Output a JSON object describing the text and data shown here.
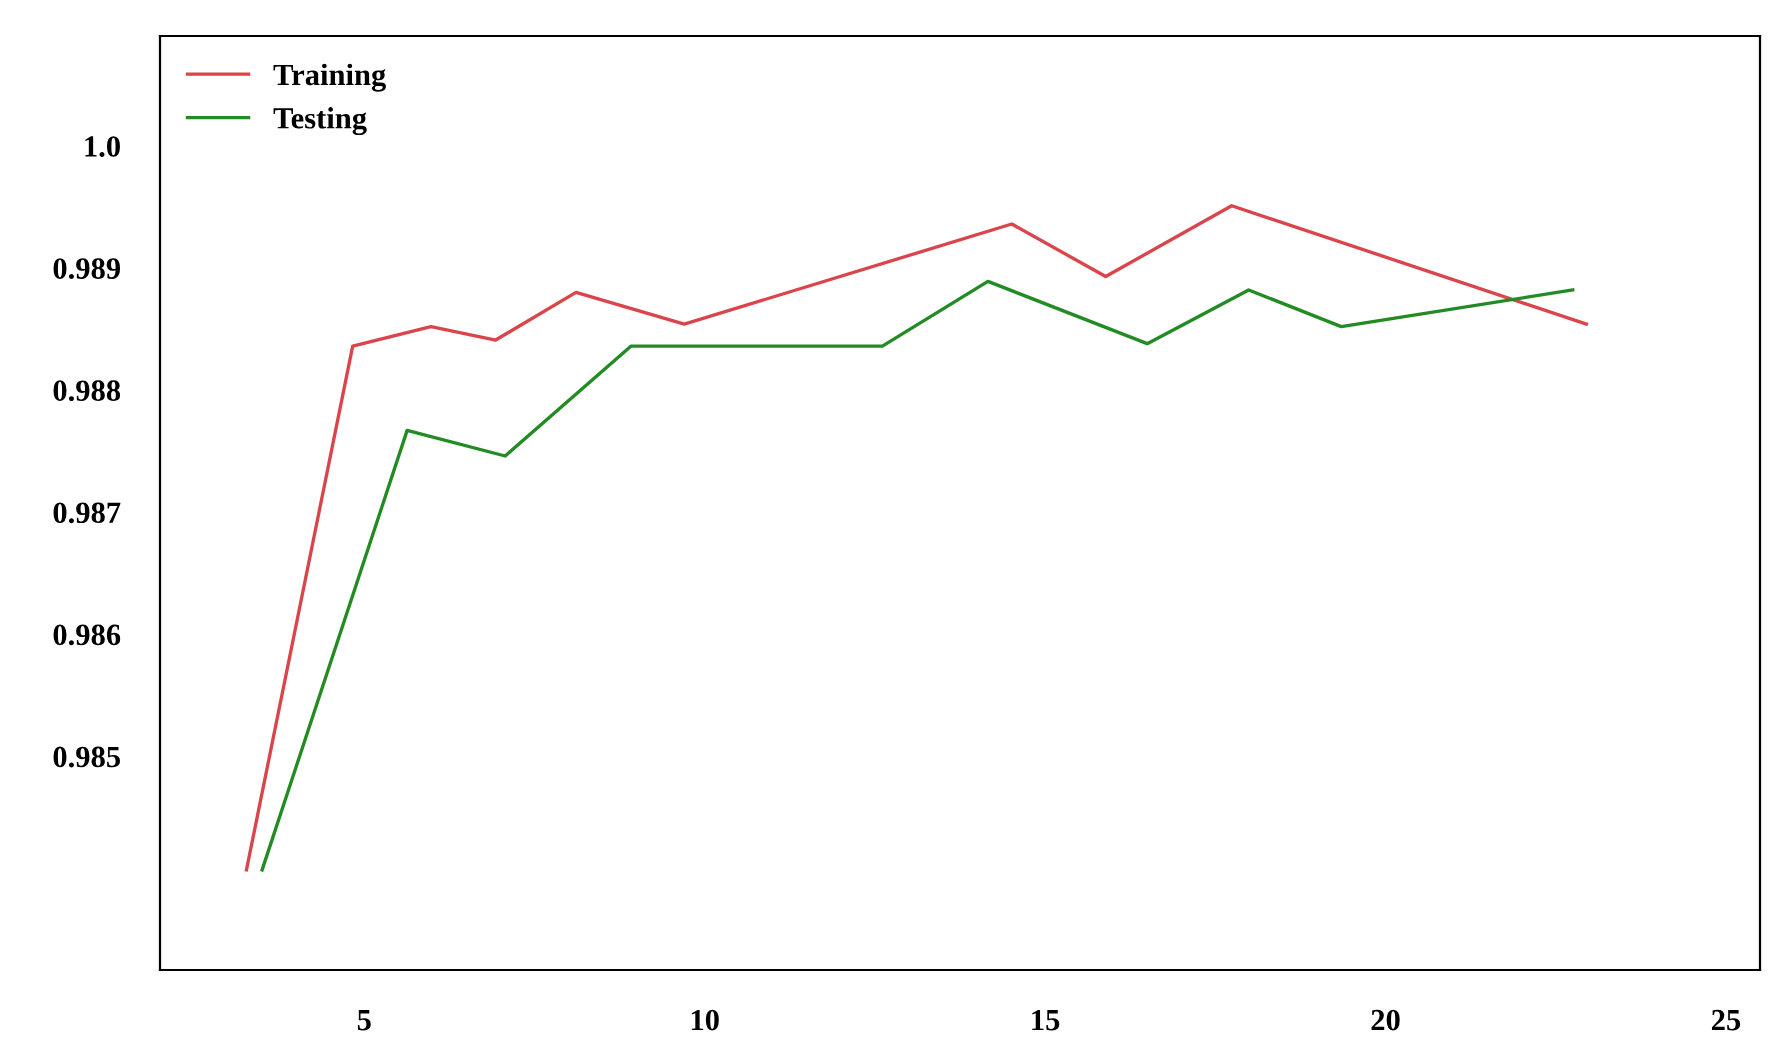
{
  "chart_data": {
    "type": "line",
    "xlim": [
      2.0,
      25.5
    ],
    "xticks": [
      5,
      10,
      15,
      20,
      25
    ],
    "ylim": [
      0.98325,
      0.9909
    ],
    "yticks": [
      0.985,
      0.986,
      0.987,
      0.988,
      0.989,
      {
        "value": 0.99,
        "label": "1.0"
      }
    ],
    "grid": false,
    "legend": "top left",
    "marker": "none",
    "line_style": "solid",
    "series": [
      {
        "name": "Training",
        "color": "#d9454a",
        "x": [
          3.27,
          4.83,
          5.98,
          6.93,
          8.11,
          9.7,
          14.51,
          15.89,
          17.74,
          22.95
        ],
        "values": [
          0.98407,
          0.98836,
          0.98852,
          0.98841,
          0.9888,
          0.98854,
          0.98936,
          0.98893,
          0.98951,
          0.98854
        ]
      },
      {
        "name": "Testing",
        "color": "#238b23",
        "x": [
          3.5,
          5.63,
          7.07,
          8.92,
          12.61,
          14.16,
          16.5,
          17.99,
          19.35,
          22.75
        ],
        "values": [
          0.98407,
          0.98767,
          0.98746,
          0.98836,
          0.98836,
          0.98889,
          0.98838,
          0.98882,
          0.98852,
          0.98882
        ]
      }
    ]
  }
}
